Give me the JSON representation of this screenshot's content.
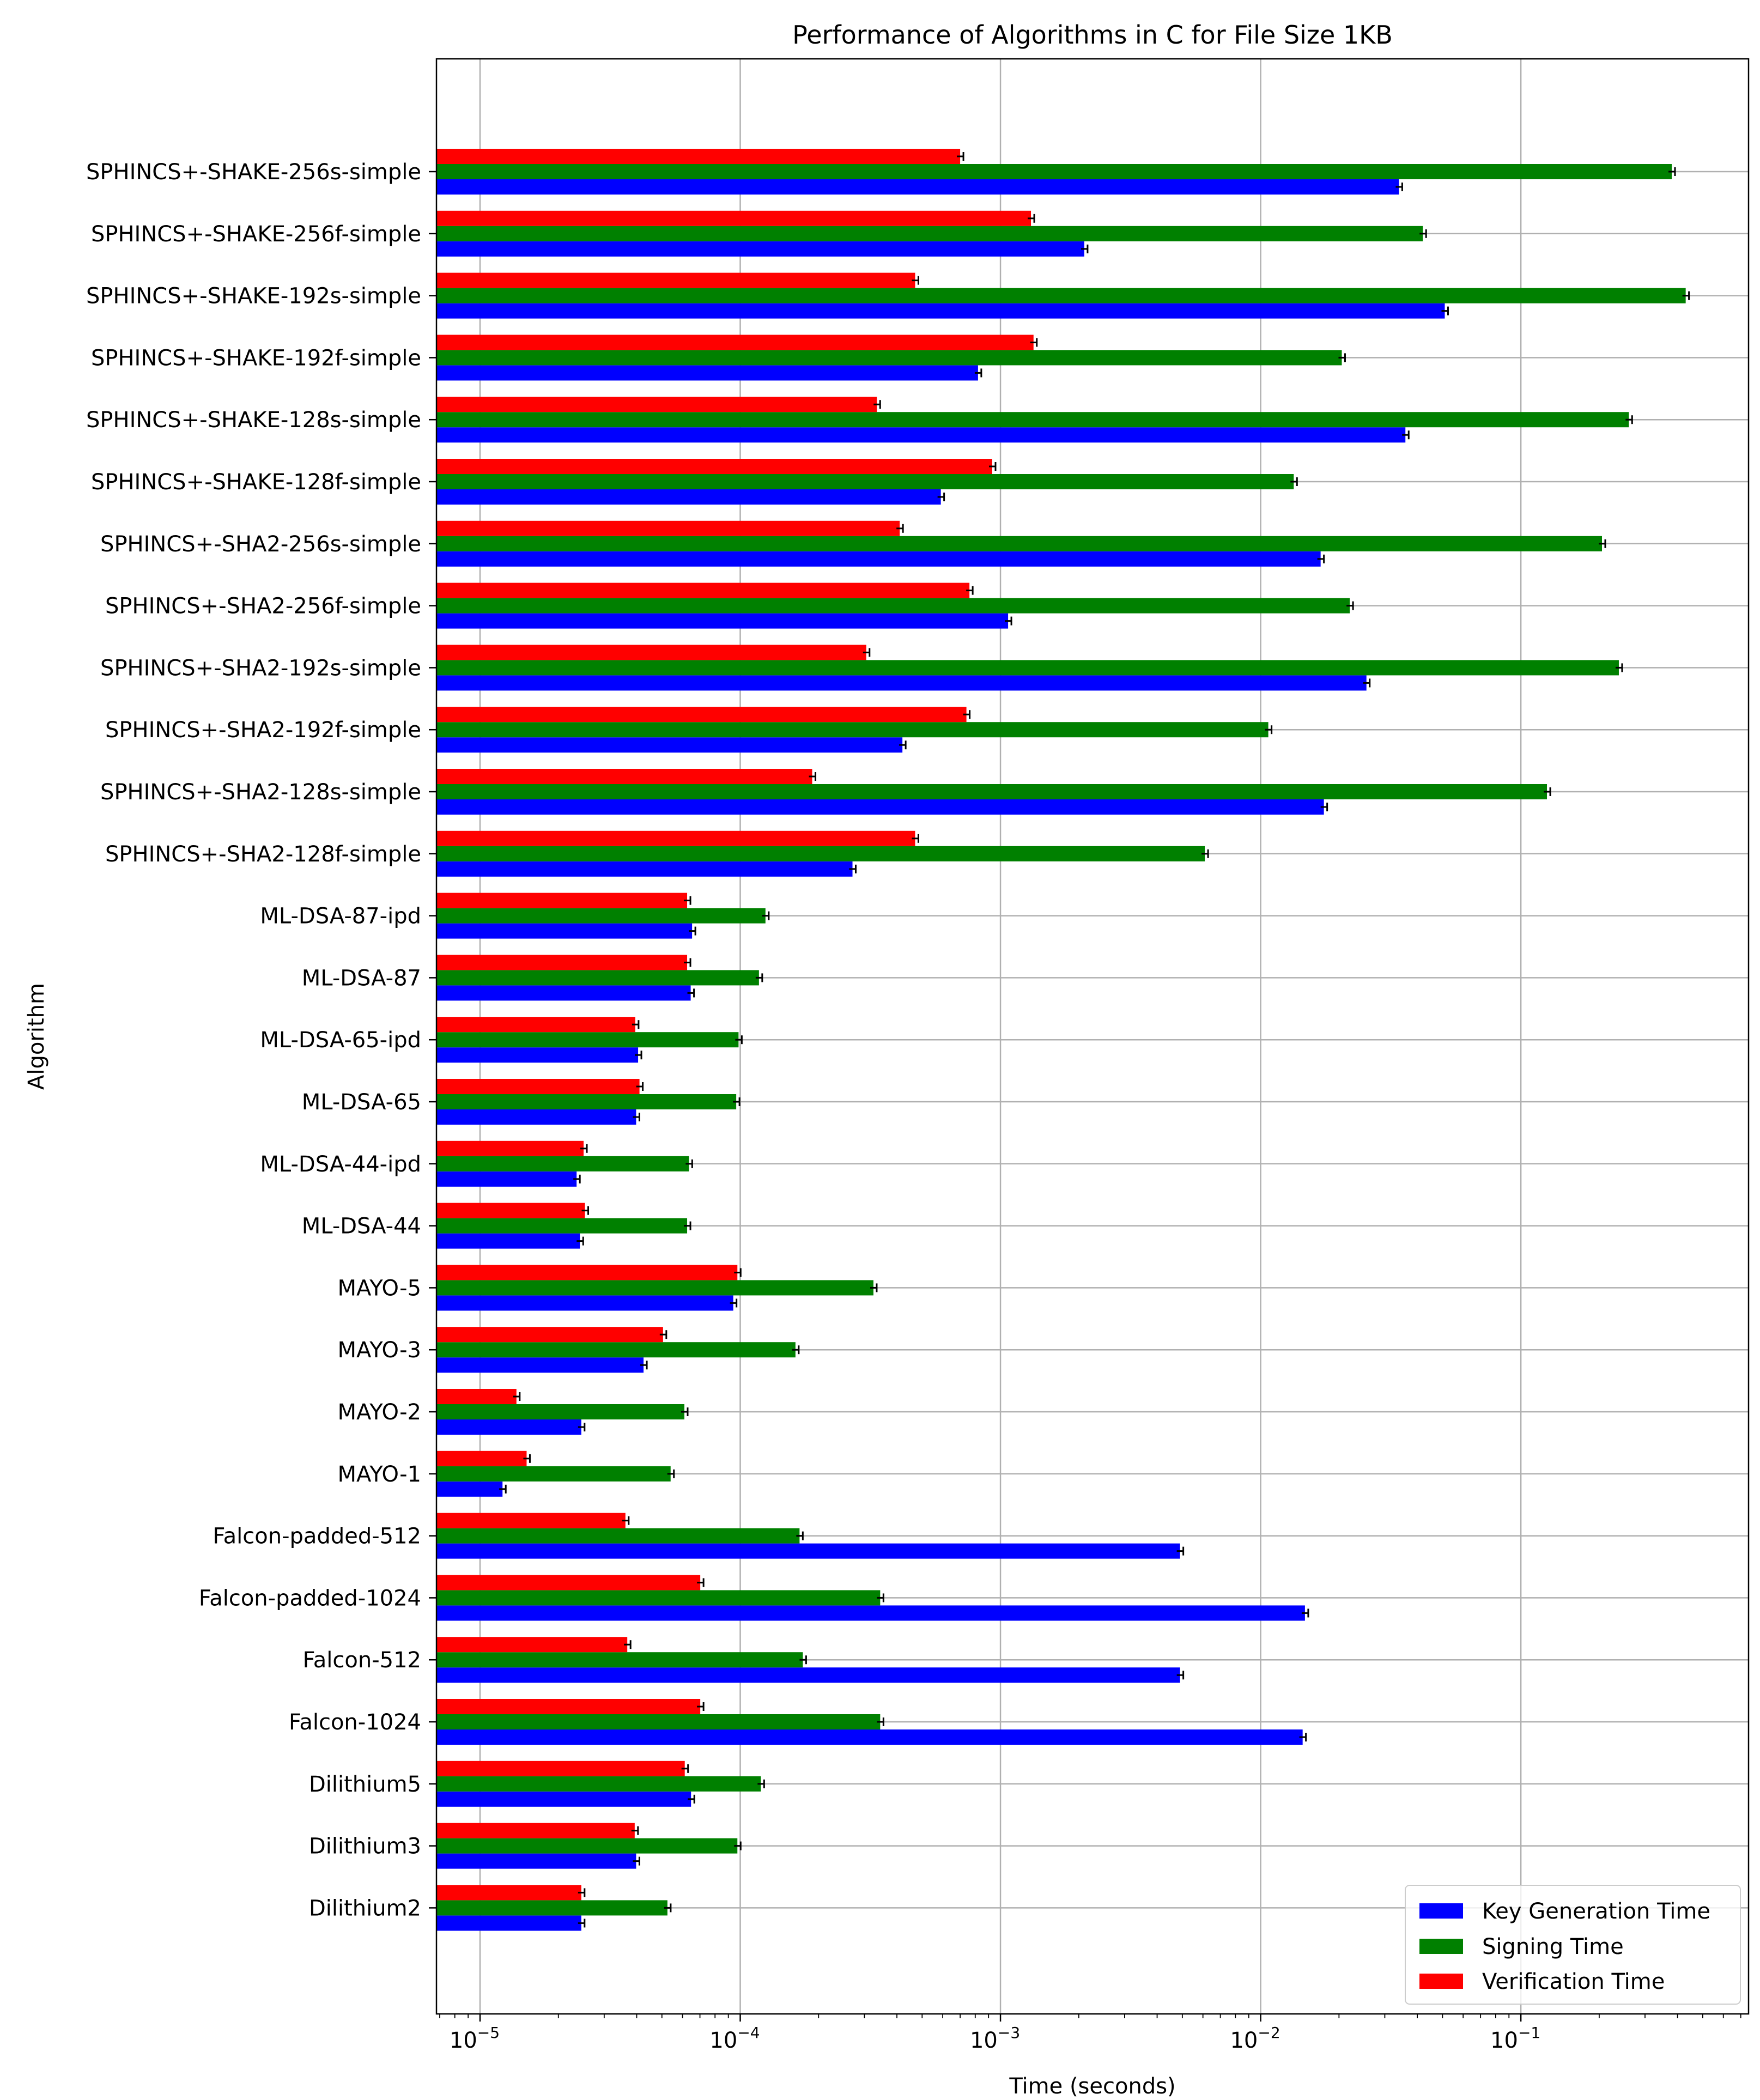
{
  "chart_data": {
    "type": "bar",
    "orientation": "horizontal",
    "title": "Performance of Algorithms in C for File Size 1KB",
    "xlabel": "Time (seconds)",
    "ylabel": "Algorithm",
    "xscale": "log",
    "xlim": [
      6.8e-06,
      0.75
    ],
    "grid": true,
    "legend_position": "bottom-right",
    "xticks": [
      {
        "value": 1e-05,
        "base": "10",
        "exp": "−5"
      },
      {
        "value": 0.0001,
        "base": "10",
        "exp": "−4"
      },
      {
        "value": 0.001,
        "base": "10",
        "exp": "−3"
      },
      {
        "value": 0.01,
        "base": "10",
        "exp": "−2"
      },
      {
        "value": 0.1,
        "base": "10",
        "exp": "−1"
      }
    ],
    "categories": [
      "SPHINCS+-SHAKE-256s-simple",
      "SPHINCS+-SHAKE-256f-simple",
      "SPHINCS+-SHAKE-192s-simple",
      "SPHINCS+-SHAKE-192f-simple",
      "SPHINCS+-SHAKE-128s-simple",
      "SPHINCS+-SHAKE-128f-simple",
      "SPHINCS+-SHA2-256s-simple",
      "SPHINCS+-SHA2-256f-simple",
      "SPHINCS+-SHA2-192s-simple",
      "SPHINCS+-SHA2-192f-simple",
      "SPHINCS+-SHA2-128s-simple",
      "SPHINCS+-SHA2-128f-simple",
      "ML-DSA-87-ipd",
      "ML-DSA-87",
      "ML-DSA-65-ipd",
      "ML-DSA-65",
      "ML-DSA-44-ipd",
      "ML-DSA-44",
      "MAYO-5",
      "MAYO-3",
      "MAYO-2",
      "MAYO-1",
      "Falcon-padded-512",
      "Falcon-padded-1024",
      "Falcon-512",
      "Falcon-1024",
      "Dilithium5",
      "Dilithium3",
      "Dilithium2"
    ],
    "series": [
      {
        "name": "Key Generation Time",
        "color": "#0000ff",
        "values": [
          0.034,
          0.0021,
          0.051,
          0.00082,
          0.036,
          0.00059,
          0.017,
          0.00107,
          0.0255,
          0.00042,
          0.0175,
          0.00027,
          6.53e-05,
          6.45e-05,
          4.05e-05,
          3.98e-05,
          2.35e-05,
          2.42e-05,
          9.4e-05,
          4.25e-05,
          2.45e-05,
          1.22e-05,
          0.0049,
          0.0148,
          0.0049,
          0.0145,
          6.47e-05,
          3.98e-05,
          2.45e-05
        ]
      },
      {
        "name": "Signing Time",
        "color": "#008000",
        "values": [
          0.38,
          0.042,
          0.43,
          0.0205,
          0.26,
          0.0134,
          0.205,
          0.022,
          0.238,
          0.0107,
          0.126,
          0.0061,
          0.000125,
          0.000118,
          9.85e-05,
          9.65e-05,
          6.35e-05,
          6.25e-05,
          0.000325,
          0.000163,
          6.1e-05,
          5.4e-05,
          0.000169,
          0.000345,
          0.000174,
          0.000345,
          0.00012,
          9.75e-05,
          5.25e-05
        ]
      },
      {
        "name": "Verification Time",
        "color": "#ff0000",
        "values": [
          0.0007,
          0.00131,
          0.00047,
          0.00134,
          0.000335,
          0.00093,
          0.00041,
          0.00076,
          0.000305,
          0.00074,
          0.000189,
          0.00047,
          6.25e-05,
          6.25e-05,
          3.95e-05,
          4.1e-05,
          2.5e-05,
          2.53e-05,
          9.75e-05,
          5.05e-05,
          1.38e-05,
          1.51e-05,
          3.62e-05,
          7.02e-05,
          3.68e-05,
          7.02e-05,
          6.12e-05,
          3.93e-05,
          2.45e-05
        ]
      }
    ]
  }
}
